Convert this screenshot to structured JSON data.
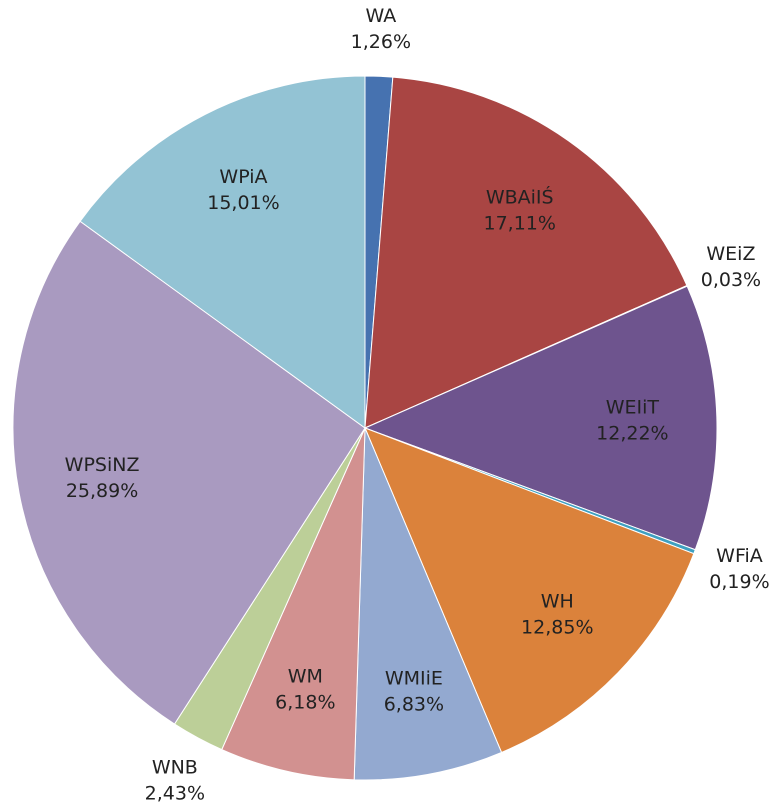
{
  "chart_data": {
    "type": "pie",
    "categories": [
      "WA",
      "WBAiIŚ",
      "WEiZ",
      "WEIiT",
      "WFiA",
      "WH",
      "WMIiE",
      "WM",
      "WNB",
      "WPSiNZ",
      "WPiA"
    ],
    "values": [
      1.26,
      17.11,
      0.03,
      12.22,
      0.19,
      12.85,
      6.83,
      6.18,
      2.43,
      25.89,
      15.01
    ],
    "value_labels": [
      "1,26%",
      "17,11%",
      "0,03%",
      "12,22%",
      "0,19%",
      "12,85%",
      "6,83%",
      "6,18%",
      "2,43%",
      "25,89%",
      "15,01%"
    ],
    "colors": [
      "#4672b0",
      "#a94543",
      "#8aa84a",
      "#6e548e",
      "#3fa0c0",
      "#db823b",
      "#93a9d0",
      "#d29190",
      "#bccf98",
      "#a99ac0",
      "#93c3d4"
    ]
  }
}
